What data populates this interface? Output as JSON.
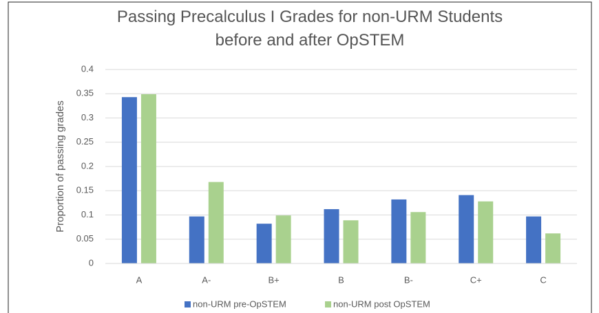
{
  "chart_data": {
    "type": "bar",
    "title": "Passing Precalculus I Grades for non-URM Students before and after OpSTEM",
    "ylabel": "Proportion of passing grades",
    "categories": [
      "A",
      "A-",
      "B+",
      "B",
      "B-",
      "C+",
      "C"
    ],
    "series": [
      {
        "name": "non-URM pre-OpSTEM",
        "color": "#4472c4",
        "values": [
          0.343,
          0.097,
          0.082,
          0.112,
          0.132,
          0.141,
          0.097
        ]
      },
      {
        "name": "non-URM post OpSTEM",
        "color": "#a9d18e",
        "values": [
          0.349,
          0.168,
          0.099,
          0.089,
          0.106,
          0.128,
          0.062
        ]
      }
    ],
    "ylim": [
      0,
      0.4
    ],
    "yticks": [
      0,
      0.05,
      0.1,
      0.15,
      0.2,
      0.25,
      0.3,
      0.35,
      0.4
    ],
    "grid": true,
    "legend": "bottom"
  }
}
